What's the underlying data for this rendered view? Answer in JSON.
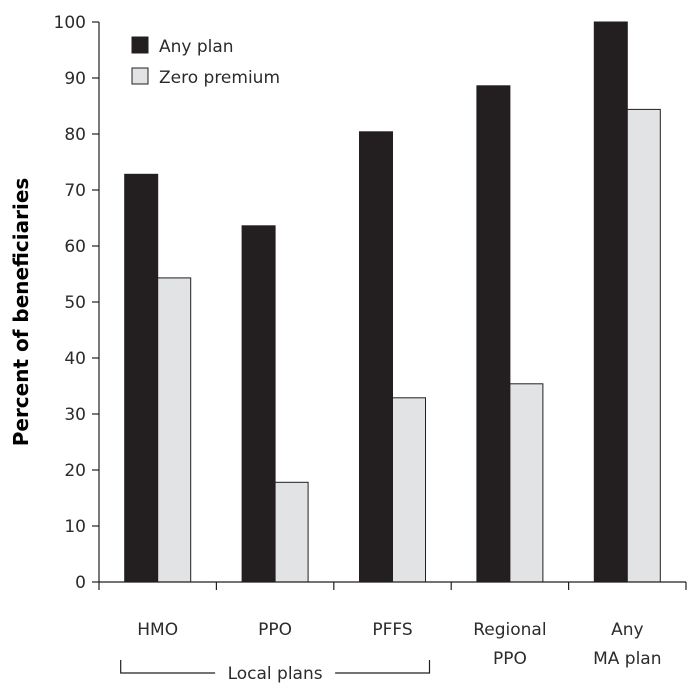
{
  "chart_data": {
    "type": "bar",
    "title": "",
    "xlabel": "",
    "ylabel": "Percent of beneficiaries",
    "ylim": [
      0,
      100
    ],
    "yticks": [
      0,
      10,
      20,
      30,
      40,
      50,
      60,
      70,
      80,
      90,
      100
    ],
    "categories": [
      [
        "HMO"
      ],
      [
        "PPO"
      ],
      [
        "PFFS"
      ],
      [
        "Regional",
        "PPO"
      ],
      [
        "Any",
        "MA plan"
      ]
    ],
    "series": [
      {
        "name": "Any plan",
        "color": "#231f20",
        "values": [
          72.8,
          63.6,
          80.4,
          88.6,
          100
        ]
      },
      {
        "name": "Zero premium",
        "color": "#e2e3e4",
        "values": [
          54.3,
          17.8,
          32.9,
          35.4,
          84.4
        ]
      }
    ],
    "category_group": {
      "label": "Local plans",
      "categories": [
        "HMO",
        "PPO",
        "PFFS"
      ]
    },
    "grid": false,
    "legend_position": "top-left"
  }
}
